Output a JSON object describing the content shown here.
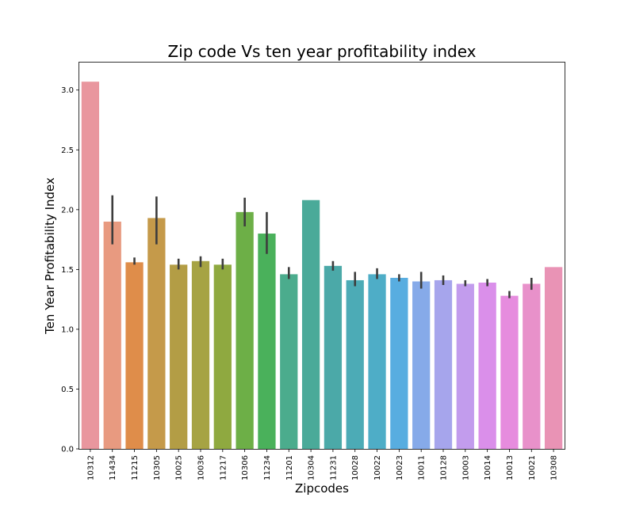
{
  "chart_data": {
    "type": "bar",
    "title": "Zip code Vs ten year profitability index",
    "xlabel": "Zipcodes",
    "ylabel": "Ten Year Profitability Index",
    "ylim": [
      0,
      3.23
    ],
    "yticks": [
      0.0,
      0.5,
      1.0,
      1.5,
      2.0,
      2.5,
      3.0
    ],
    "ytick_labels": [
      "0.0",
      "0.5",
      "1.0",
      "1.5",
      "2.0",
      "2.5",
      "3.0"
    ],
    "grid": false,
    "categories": [
      "10312",
      "11434",
      "11215",
      "10305",
      "10025",
      "10036",
      "11217",
      "10306",
      "11234",
      "11201",
      "10304",
      "11231",
      "10028",
      "10022",
      "10023",
      "10011",
      "10128",
      "10003",
      "10014",
      "10013",
      "10021",
      "10308"
    ],
    "values": [
      3.07,
      1.9,
      1.56,
      1.93,
      1.54,
      1.57,
      1.54,
      1.98,
      1.8,
      1.46,
      2.08,
      1.53,
      1.41,
      1.46,
      1.43,
      1.4,
      1.41,
      1.38,
      1.39,
      1.28,
      1.38,
      1.52
    ],
    "error_low": [
      null,
      1.71,
      1.54,
      1.71,
      1.5,
      1.52,
      1.5,
      1.86,
      1.63,
      1.42,
      null,
      1.49,
      1.36,
      1.42,
      1.4,
      1.34,
      1.37,
      1.36,
      1.36,
      1.26,
      1.33,
      null
    ],
    "error_high": [
      null,
      2.12,
      1.6,
      2.11,
      1.59,
      1.61,
      1.59,
      2.1,
      1.98,
      1.52,
      null,
      1.57,
      1.48,
      1.51,
      1.46,
      1.48,
      1.45,
      1.41,
      1.42,
      1.32,
      1.43,
      null
    ],
    "colors": [
      "#e9969e",
      "#e89a80",
      "#df8d4a",
      "#c59a4a",
      "#b39d45",
      "#a6a343",
      "#8fa940",
      "#6daf47",
      "#4ab15b",
      "#4bac8d",
      "#4aaa99",
      "#4ba9a8",
      "#4cabb6",
      "#4eadc7",
      "#58ade0",
      "#86aae9",
      "#a6a5ec",
      "#c29ced",
      "#da8fea",
      "#e68cde",
      "#e891ca",
      "#e993b5"
    ]
  }
}
